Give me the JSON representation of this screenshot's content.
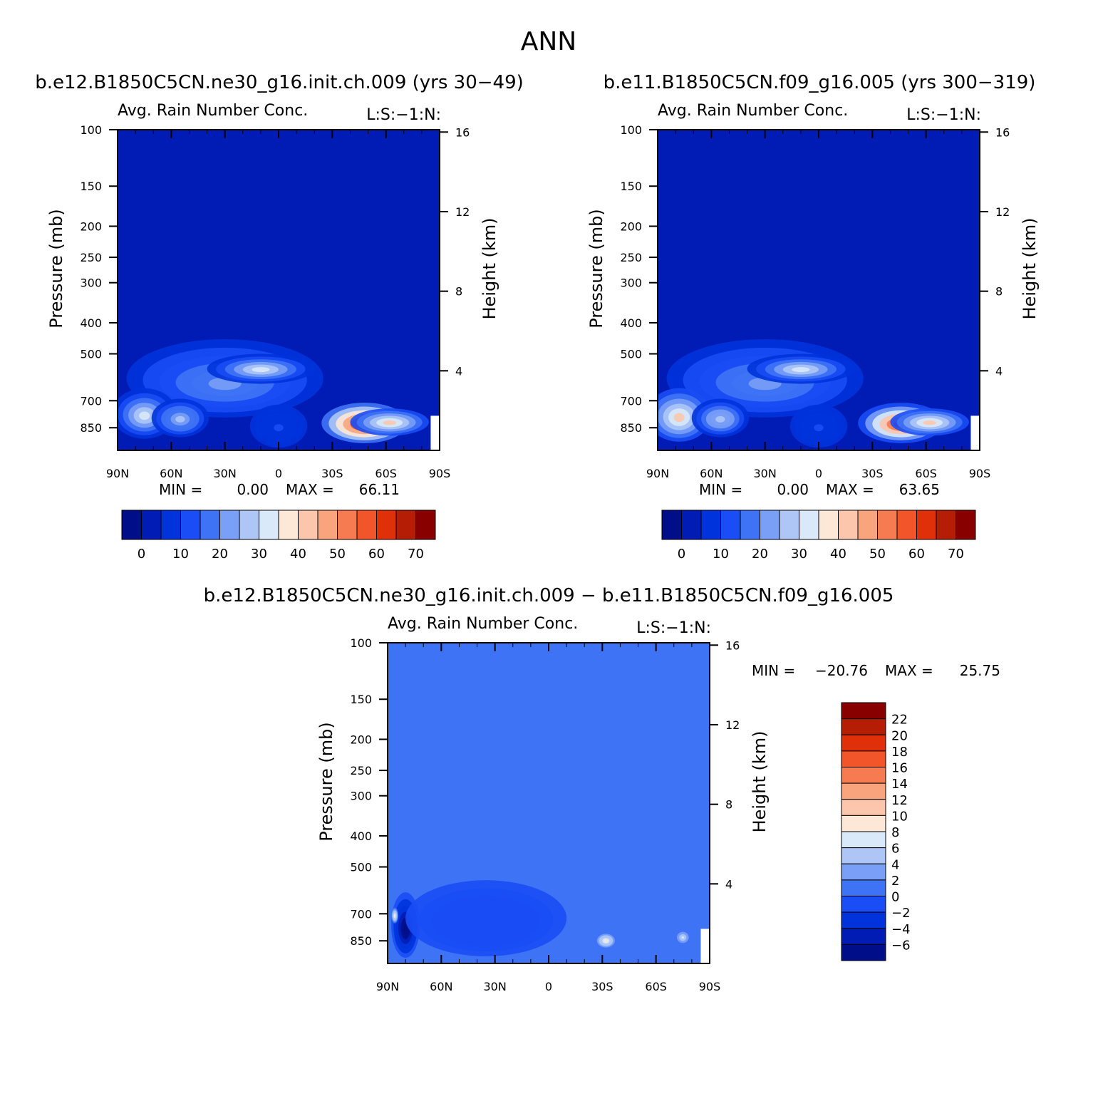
{
  "figure": {
    "title": "ANN"
  },
  "colors": {
    "model_palette": [
      "#000e8a",
      "#001cb4",
      "#0033dc",
      "#1a4df5",
      "#3f73f5",
      "#7a9ff7",
      "#adc6f6",
      "#d9e9fa",
      "#fde7d6",
      "#fbc6ac",
      "#f9a47d",
      "#f67b50",
      "#f2552a",
      "#e03009",
      "#b51d04",
      "#880000"
    ],
    "diff_palette": [
      "#000e8a",
      "#001cb4",
      "#0033dc",
      "#1a4df5",
      "#3f73f5",
      "#7a9ff7",
      "#adc6f6",
      "#d9e9fa",
      "#fde7d6",
      "#fbc6ac",
      "#f9a47d",
      "#f67b50",
      "#f2552a",
      "#e03009",
      "#b51d04",
      "#880000"
    ]
  },
  "chart_data": [
    {
      "id": "panel1",
      "type": "heatmap",
      "title": "b.e12.B1850C5CN.ne30_g16.init.ch.009 (yrs 30−49)",
      "subtitle_left": "Avg. Rain Number Conc.",
      "subtitle_right": "L:S:−1:N:",
      "xlabel": "",
      "ylabel": "Pressure (mb)",
      "y2label": "Height (km)",
      "x_ticks": [
        "90N",
        "60N",
        "30N",
        "0",
        "30S",
        "60S",
        "90S"
      ],
      "x_values": [
        90,
        60,
        30,
        0,
        -30,
        -60,
        -90
      ],
      "y_ticks": [
        100,
        150,
        200,
        250,
        300,
        400,
        500,
        700,
        850
      ],
      "y_range_mb": [
        100,
        1000
      ],
      "y2_ticks": [
        16,
        12,
        8,
        4
      ],
      "min_label": "MIN =",
      "min_value": "0.00",
      "max_label": "MAX =",
      "max_value": "66.11",
      "colorbar_labels": [
        "0",
        "10",
        "20",
        "30",
        "40",
        "50",
        "60",
        "70"
      ],
      "blobs": [
        {
          "lat": 30,
          "p": 620,
          "rx": 55,
          "ry": 170,
          "v": 22
        },
        {
          "lat": 10,
          "p": 560,
          "rx": 30,
          "ry": 60,
          "v": 30
        },
        {
          "lat": 75,
          "p": 780,
          "rx": 18,
          "ry": 140,
          "v": 34
        },
        {
          "lat": 55,
          "p": 800,
          "rx": 16,
          "ry": 110,
          "v": 26
        },
        {
          "lat": 0,
          "p": 850,
          "rx": 16,
          "ry": 130,
          "v": 10
        },
        {
          "lat": -48,
          "p": 830,
          "rx": 24,
          "ry": 120,
          "v": 66
        },
        {
          "lat": -62,
          "p": 820,
          "rx": 22,
          "ry": 80,
          "v": 40
        }
      ]
    },
    {
      "id": "panel2",
      "type": "heatmap",
      "title": "b.e11.B1850C5CN.f09_g16.005 (yrs 300−319)",
      "subtitle_left": "Avg. Rain Number Conc.",
      "subtitle_right": "L:S:−1:N:",
      "xlabel": "",
      "ylabel": "Pressure (mb)",
      "y2label": "Height (km)",
      "x_ticks": [
        "90N",
        "60N",
        "30N",
        "0",
        "30S",
        "60S",
        "90S"
      ],
      "x_values": [
        90,
        60,
        30,
        0,
        -30,
        -60,
        -90
      ],
      "y_ticks": [
        100,
        150,
        200,
        250,
        300,
        400,
        500,
        700,
        850
      ],
      "y_range_mb": [
        100,
        1000
      ],
      "y2_ticks": [
        16,
        12,
        8,
        4
      ],
      "min_label": "MIN =",
      "min_value": "0.00",
      "max_label": "MAX =",
      "max_value": "63.65",
      "colorbar_labels": [
        "0",
        "10",
        "20",
        "30",
        "40",
        "50",
        "60",
        "70"
      ],
      "blobs": [
        {
          "lat": 30,
          "p": 620,
          "rx": 55,
          "ry": 170,
          "v": 22
        },
        {
          "lat": 10,
          "p": 560,
          "rx": 30,
          "ry": 60,
          "v": 30
        },
        {
          "lat": 78,
          "p": 790,
          "rx": 18,
          "ry": 150,
          "v": 40
        },
        {
          "lat": 55,
          "p": 800,
          "rx": 16,
          "ry": 110,
          "v": 28
        },
        {
          "lat": 0,
          "p": 850,
          "rx": 16,
          "ry": 130,
          "v": 10
        },
        {
          "lat": -46,
          "p": 830,
          "rx": 24,
          "ry": 120,
          "v": 64
        },
        {
          "lat": -62,
          "p": 820,
          "rx": 22,
          "ry": 80,
          "v": 40
        }
      ]
    },
    {
      "id": "panel3",
      "type": "heatmap",
      "title": "b.e12.B1850C5CN.ne30_g16.init.ch.009 − b.e11.B1850C5CN.f09_g16.005",
      "subtitle_left": "Avg. Rain Number Conc.",
      "subtitle_right": "L:S:−1:N:",
      "xlabel": "",
      "ylabel": "Pressure (mb)",
      "y2label": "Height (km)",
      "x_ticks": [
        "90N",
        "60N",
        "30N",
        "0",
        "30S",
        "60S",
        "90S"
      ],
      "x_values": [
        90,
        60,
        30,
        0,
        -30,
        -60,
        -90
      ],
      "y_ticks": [
        100,
        150,
        200,
        250,
        300,
        400,
        500,
        700,
        850
      ],
      "y_range_mb": [
        100,
        1000
      ],
      "y2_ticks": [
        16,
        12,
        8,
        4
      ],
      "min_label": "MIN =",
      "min_value": "−20.76",
      "max_label": "MAX =",
      "max_value": "25.75",
      "colorbar_labels": [
        "22",
        "20",
        "18",
        "16",
        "14",
        "12",
        "10",
        "8",
        "6",
        "4",
        "2",
        "0",
        "−2",
        "−4",
        "−6"
      ],
      "blobs": [
        {
          "lat": 80,
          "p": 780,
          "rx": 8,
          "ry": 180,
          "v": -8
        },
        {
          "lat": 35,
          "p": 750,
          "rx": 45,
          "ry": 200,
          "v": -2
        },
        {
          "lat": -32,
          "p": 850,
          "rx": 6,
          "ry": 50,
          "v": 8
        },
        {
          "lat": 86,
          "p": 710,
          "rx": 2,
          "ry": 40,
          "v": 8
        },
        {
          "lat": -75,
          "p": 830,
          "rx": 4,
          "ry": 40,
          "v": 6
        }
      ]
    }
  ]
}
